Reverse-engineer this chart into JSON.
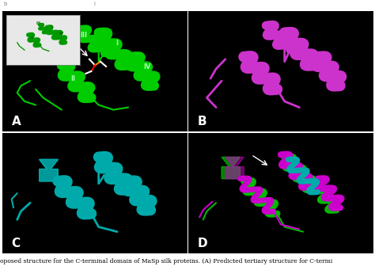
{
  "fig_width": 4.74,
  "fig_height": 3.41,
  "dpi": 100,
  "bg_color": "#ffffff",
  "panel_bg": "#000000",
  "panels": [
    "A",
    "B",
    "C",
    "D"
  ],
  "panel_label_color": "#ffffff",
  "panel_label_fontsize": 11,
  "caption_text": "oposed structure for the C-terminal domain of MaSp silk proteins. (A) Predicted tertiary structure for C-termi",
  "caption_fontsize": 5.5,
  "colors": {
    "green": "#00cc00",
    "bright_green": "#33ff33",
    "dark_green": "#009900",
    "magenta": "#cc00cc",
    "bright_magenta": "#ff33ff",
    "cyan": "#00cccc",
    "bright_cyan": "#33ffff",
    "white": "#ffffff",
    "yellow": "#ffff00",
    "red": "#ff3333"
  }
}
